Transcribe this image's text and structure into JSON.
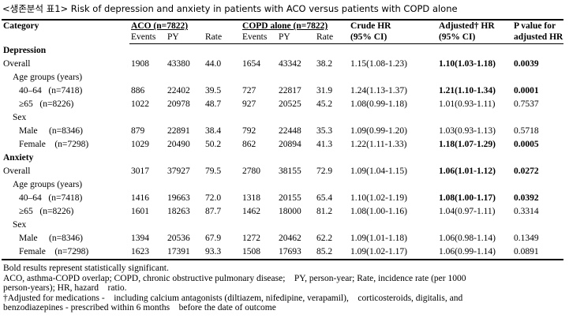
{
  "caption": "<생존분석 표1> Risk of depression and anxiety in patients with ACO versus patients with COPD alone",
  "header": {
    "category": "Category",
    "aco_group": "ACO (n=7822)",
    "copd_group": "COPD alone (n=7822)",
    "crude_hr": "Crude HR",
    "crude_ci": "(95% CI)",
    "adjusted_hr": "Adjusted† HR",
    "adjusted_ci": "(95% CI)",
    "p_value": "P value for",
    "p_value2": "adjusted HR",
    "events": "Events",
    "py": "PY",
    "rate": "Rate"
  },
  "rows": [
    {
      "type": "section",
      "label": "Depression"
    },
    {
      "type": "data",
      "label": "Overall",
      "indent": 0,
      "v": [
        "1908",
        "43380",
        "44.0",
        "1654",
        "43342",
        "38.2",
        "1.15(1.08-1.23)",
        "1.10(1.03-1.18)",
        "0.0039"
      ],
      "bold": true
    },
    {
      "type": "sub",
      "label": "Age groups (years)"
    },
    {
      "type": "data",
      "label": "40–64   (n=7418)",
      "indent": 2,
      "v": [
        "886",
        "22402",
        "39.5",
        "727",
        "22817",
        "31.9",
        "1.24(1.13-1.37)",
        "1.21(1.10-1.34)",
        "0.0001"
      ],
      "bold": true
    },
    {
      "type": "data",
      "label": "≥65   (n=8226)",
      "indent": 2,
      "v": [
        "1022",
        "20978",
        "48.7",
        "927",
        "20525",
        "45.2",
        "1.08(0.99-1.18)",
        "1.01(0.93-1.11)",
        "0.7537"
      ],
      "bold": false
    },
    {
      "type": "sub",
      "label": "Sex"
    },
    {
      "type": "data",
      "label": "Male     (n=8346)",
      "indent": 2,
      "v": [
        "879",
        "22891",
        "38.4",
        "792",
        "22448",
        "35.3",
        "1.09(0.99-1.20)",
        "1.03(0.93-1.13)",
        "0.5718"
      ],
      "bold": false
    },
    {
      "type": "data",
      "label": "Female    (n=7298)",
      "indent": 2,
      "v": [
        "1029",
        "20490",
        "50.2",
        "862",
        "20894",
        "41.3",
        "1.22(1.11-1.33)",
        "1.18(1.07-1.29)",
        "0.0005"
      ],
      "bold": true
    },
    {
      "type": "section",
      "label": "Anxiety"
    },
    {
      "type": "data",
      "label": "Overall",
      "indent": 0,
      "v": [
        "3017",
        "37927",
        "79.5",
        "2780",
        "38155",
        "72.9",
        "1.09(1.04-1.15)",
        "1.06(1.01-1.12)",
        "0.0272"
      ],
      "bold": true
    },
    {
      "type": "sub",
      "label": "Age groups (years)"
    },
    {
      "type": "data",
      "label": "40–64   (n=7418)",
      "indent": 2,
      "v": [
        "1416",
        "19663",
        "72.0",
        "1318",
        "20155",
        "65.4",
        "1.10(1.02-1.19)",
        "1.08(1.00-1.17)",
        "0.0392"
      ],
      "bold": true
    },
    {
      "type": "data",
      "label": "≥65   (n=8226)",
      "indent": 2,
      "v": [
        "1601",
        "18263",
        "87.7",
        "1462",
        "18000",
        "81.2",
        "1.08(1.00-1.16)",
        "1.04(0.97-1.11)",
        "0.3314"
      ],
      "bold": false
    },
    {
      "type": "sub",
      "label": "Sex"
    },
    {
      "type": "data",
      "label": "Male     (n=8346)",
      "indent": 2,
      "v": [
        "1394",
        "20536",
        "67.9",
        "1272",
        "20462",
        "62.2",
        "1.09(1.01-1.18)",
        "1.06(0.98-1.14)",
        "0.1349"
      ],
      "bold": false
    },
    {
      "type": "data",
      "label": "Female    (n=7298)",
      "indent": 2,
      "v": [
        "1623",
        "17391",
        "93.3",
        "1508",
        "17693",
        "85.2",
        "1.09(1.02-1.17)",
        "1.06(0.99-1.14)",
        "0.0891"
      ],
      "bold": false
    }
  ],
  "notes": [
    "Bold results represent statistically significant.",
    "ACO, asthma-COPD overlap; COPD, chronic obstructive pulmonary disease;    PY, person-year; Rate, incidence rate (per 1000",
    "person-years); HR, hazard    ratio.",
    "†Adjusted for medications -    including calcium antagonists (diltiazem, nifedipine, verapamil),    corticosteroids, digitalis, and",
    "benzodiazepines - prescribed within 6 months    before the date of outcome"
  ]
}
